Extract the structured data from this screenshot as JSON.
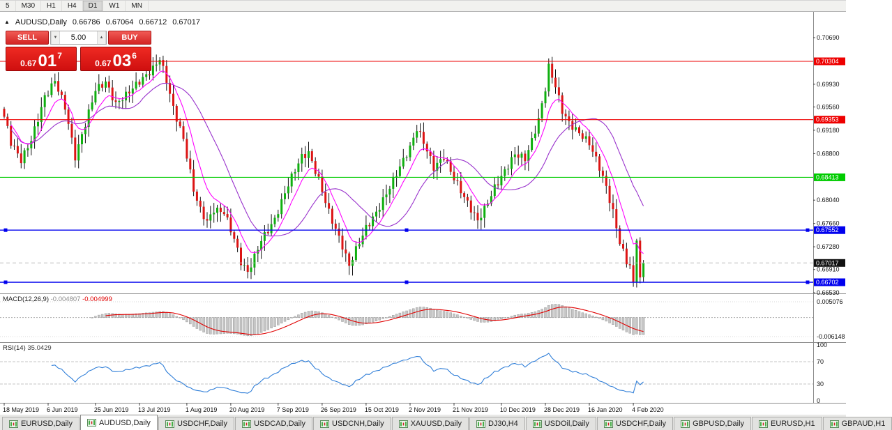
{
  "app": {
    "name": "MetaTrader chart window"
  },
  "toolbar": {
    "timeframes": [
      {
        "label": "5",
        "active": false
      },
      {
        "label": "M30",
        "active": false
      },
      {
        "label": "H1",
        "active": false
      },
      {
        "label": "H4",
        "active": false
      },
      {
        "label": "D1",
        "active": true
      },
      {
        "label": "W1",
        "active": false
      },
      {
        "label": "MN",
        "active": false
      }
    ]
  },
  "chart_header": {
    "symbol": "AUDUSD,Daily",
    "open": "0.66786",
    "high": "0.67064",
    "low": "0.66712",
    "close": "0.67017"
  },
  "trade_panel": {
    "sell_label": "SELL",
    "buy_label": "BUY",
    "lot_size": "5.00",
    "sell_price": {
      "prefix": "0.67",
      "big": "01",
      "sup": "7"
    },
    "buy_price": {
      "prefix": "0.67",
      "big": "03",
      "sup": "6"
    },
    "panel_color": "#dd1212"
  },
  "tabs": [
    {
      "label": "EURUSD,Daily",
      "active": false
    },
    {
      "label": "AUDUSD,Daily",
      "active": true
    },
    {
      "label": "USDCHF,Daily",
      "active": false
    },
    {
      "label": "USDCAD,Daily",
      "active": false
    },
    {
      "label": "USDCNH,Daily",
      "active": false
    },
    {
      "label": "XAUUSD,Daily",
      "active": false
    },
    {
      "label": "DJ30,H4",
      "active": false
    },
    {
      "label": "USDOil,Daily",
      "active": false
    },
    {
      "label": "USDCHF,Daily",
      "active": false
    },
    {
      "label": "GBPUSD,Daily",
      "active": false
    },
    {
      "label": "EURUSD,H1",
      "active": false
    },
    {
      "label": "GBPAUD,H1",
      "active": false
    }
  ],
  "chart_data": {
    "type": "candlestick",
    "symbol": "AUDUSD",
    "timeframe": "Daily",
    "bull_color": "#0faf0f",
    "bear_color": "#dc1414",
    "wick_color": "#111111",
    "candle_count": 190,
    "price_axis_ticks": [
      0.7069,
      0.6993,
      0.6956,
      0.6918,
      0.688,
      0.6804,
      0.6766,
      0.6728,
      0.6691,
      0.6653
    ],
    "hlines": [
      {
        "price": 0.70304,
        "color": "#ee0000",
        "handles": false
      },
      {
        "price": 0.69353,
        "color": "#ee0000",
        "handles": false
      },
      {
        "price": 0.68413,
        "color": "#00cc00",
        "handles": false
      },
      {
        "price": 0.67552,
        "color": "#0000ee",
        "handles": true
      },
      {
        "price": 0.66702,
        "color": "#0000ee",
        "handles": true
      }
    ],
    "current_price": 0.67017,
    "x_axis_labels": [
      {
        "index": 0,
        "label": "18 May 2019"
      },
      {
        "index": 13,
        "label": "6 Jun 2019"
      },
      {
        "index": 27,
        "label": "25 Jun 2019"
      },
      {
        "index": 40,
        "label": "13 Jul 2019"
      },
      {
        "index": 54,
        "label": "1 Aug 2019"
      },
      {
        "index": 67,
        "label": "20 Aug 2019"
      },
      {
        "index": 81,
        "label": "7 Sep 2019"
      },
      {
        "index": 94,
        "label": "26 Sep 2019"
      },
      {
        "index": 107,
        "label": "15 Oct 2019"
      },
      {
        "index": 120,
        "label": "2 Nov 2019"
      },
      {
        "index": 133,
        "label": "21 Nov 2019"
      },
      {
        "index": 147,
        "label": "10 Dec 2019"
      },
      {
        "index": 160,
        "label": "28 Dec 2019"
      },
      {
        "index": 173,
        "label": "16 Jan 2020"
      },
      {
        "index": 186,
        "label": "4 Feb 2020"
      }
    ],
    "close_anchors": [
      [
        0,
        0.694
      ],
      [
        2,
        0.6895
      ],
      [
        5,
        0.6868
      ],
      [
        8,
        0.6905
      ],
      [
        12,
        0.6975
      ],
      [
        15,
        0.6998
      ],
      [
        18,
        0.6952
      ],
      [
        21,
        0.6872
      ],
      [
        24,
        0.693
      ],
      [
        27,
        0.6988
      ],
      [
        30,
        0.6998
      ],
      [
        33,
        0.6958
      ],
      [
        36,
        0.6972
      ],
      [
        40,
        0.6998
      ],
      [
        44,
        0.7022
      ],
      [
        46,
        0.7038
      ],
      [
        48,
        0.7
      ],
      [
        50,
        0.6952
      ],
      [
        53,
        0.69
      ],
      [
        56,
        0.682
      ],
      [
        58,
        0.679
      ],
      [
        60,
        0.6772
      ],
      [
        62,
        0.6792
      ],
      [
        65,
        0.6785
      ],
      [
        68,
        0.6738
      ],
      [
        70,
        0.67
      ],
      [
        72,
        0.6684
      ],
      [
        74,
        0.6712
      ],
      [
        76,
        0.6742
      ],
      [
        80,
        0.6775
      ],
      [
        84,
        0.6828
      ],
      [
        88,
        0.6872
      ],
      [
        90,
        0.688
      ],
      [
        93,
        0.684
      ],
      [
        96,
        0.6788
      ],
      [
        100,
        0.6728
      ],
      [
        102,
        0.6694
      ],
      [
        104,
        0.672
      ],
      [
        107,
        0.6758
      ],
      [
        110,
        0.6786
      ],
      [
        113,
        0.6818
      ],
      [
        116,
        0.6848
      ],
      [
        120,
        0.6886
      ],
      [
        122,
        0.6918
      ],
      [
        124,
        0.6898
      ],
      [
        127,
        0.686
      ],
      [
        130,
        0.6878
      ],
      [
        133,
        0.684
      ],
      [
        136,
        0.6806
      ],
      [
        138,
        0.6786
      ],
      [
        140,
        0.6768
      ],
      [
        142,
        0.679
      ],
      [
        145,
        0.6828
      ],
      [
        148,
        0.6854
      ],
      [
        151,
        0.6878
      ],
      [
        154,
        0.6868
      ],
      [
        156,
        0.6898
      ],
      [
        158,
        0.6934
      ],
      [
        160,
        0.6988
      ],
      [
        161,
        0.7024
      ],
      [
        163,
        0.6994
      ],
      [
        165,
        0.6952
      ],
      [
        167,
        0.693
      ],
      [
        170,
        0.691
      ],
      [
        173,
        0.6894
      ],
      [
        176,
        0.6858
      ],
      [
        178,
        0.6828
      ],
      [
        180,
        0.6788
      ],
      [
        182,
        0.6738
      ],
      [
        184,
        0.6704
      ],
      [
        185,
        0.6698
      ],
      [
        186,
        0.667
      ],
      [
        187,
        0.6738
      ],
      [
        188,
        0.6678
      ],
      [
        189,
        0.67017
      ]
    ],
    "last_candle": {
      "open": 0.66786,
      "high": 0.67064,
      "low": 0.66712,
      "close": 0.67017
    },
    "moving_averages": [
      {
        "method": "sma",
        "period": 20,
        "color": "#9932cc"
      },
      {
        "method": "ema",
        "period": 8,
        "color": "#ff00ff"
      }
    ],
    "indicators": {
      "macd": {
        "label": "MACD(12,26,9)",
        "value_main": "-0.004807",
        "value_signal": "-0.004999",
        "fast": 12,
        "slow": 26,
        "signal": 9,
        "axis_max": "0.005076",
        "axis_min": "-0.006148",
        "hist_color": "#c6c6c6",
        "hist_border": "#9a9a9a",
        "signal_color": "#e00000"
      },
      "rsi": {
        "label": "RSI(14)",
        "value": "35.0429",
        "period": 14,
        "levels": [
          100,
          70,
          30,
          0
        ],
        "dashed_levels": [
          70,
          30
        ],
        "color": "#2f7ed8"
      }
    }
  }
}
